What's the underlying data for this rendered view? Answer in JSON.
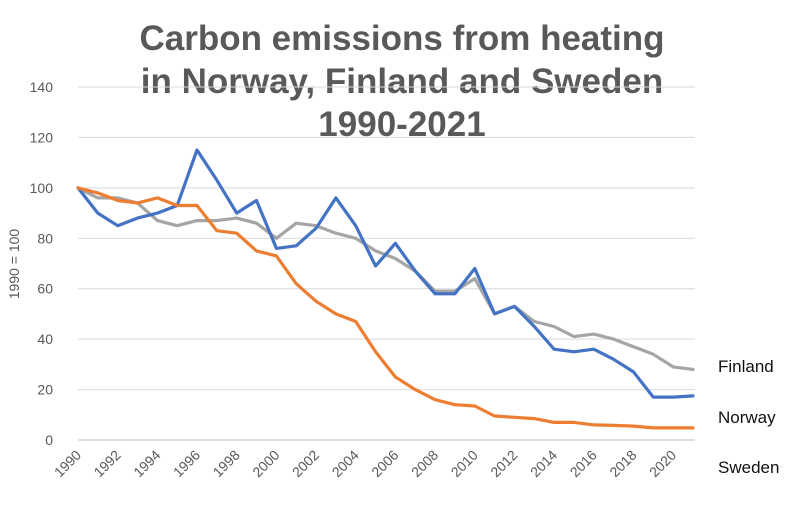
{
  "chart_data": {
    "type": "line",
    "title_lines": [
      "Carbon emissions from heating",
      "in Norway, Finland and Sweden",
      "1990-2021"
    ],
    "xlabel": "",
    "ylabel": "1990 = 100",
    "ylim": [
      0,
      140
    ],
    "yticks": [
      0,
      20,
      40,
      60,
      80,
      100,
      120,
      140
    ],
    "x": [
      1990,
      1991,
      1992,
      1993,
      1994,
      1995,
      1996,
      1997,
      1998,
      1999,
      2000,
      2001,
      2002,
      2003,
      2004,
      2005,
      2006,
      2007,
      2008,
      2009,
      2010,
      2011,
      2012,
      2013,
      2014,
      2015,
      2016,
      2017,
      2018,
      2019,
      2020,
      2021
    ],
    "xtick_labels": [
      "1990",
      "1992",
      "1994",
      "1996",
      "1998",
      "2000",
      "2002",
      "2004",
      "2006",
      "2008",
      "2010",
      "2012",
      "2014",
      "2016",
      "2018",
      "2020"
    ],
    "grid": true,
    "legend": "end-of-line labels at right",
    "series": [
      {
        "name": "Finland",
        "color": "#a5a5a5",
        "values": [
          100,
          96,
          96,
          94,
          87,
          85,
          87,
          87,
          88,
          86,
          80,
          86,
          85,
          82,
          80,
          75,
          72,
          67,
          59,
          59,
          64,
          50,
          53,
          47,
          45,
          41,
          42,
          40,
          37,
          34,
          29,
          28
        ]
      },
      {
        "name": "Norway",
        "color": "#4472c4",
        "values": [
          100,
          90,
          85,
          88,
          90,
          93,
          115,
          103,
          90,
          95,
          76,
          77,
          84,
          96,
          85,
          69,
          78,
          67,
          58,
          58,
          68,
          50,
          53,
          45,
          36,
          35,
          36,
          32,
          27,
          17,
          17,
          17.5
        ]
      },
      {
        "name": "Sweden",
        "color": "#ed7d31",
        "values": [
          100,
          98,
          95,
          94,
          96,
          93,
          93,
          83,
          82,
          75,
          73,
          62,
          55,
          50,
          47,
          35,
          25,
          20,
          16,
          14,
          13.5,
          9.5,
          9,
          8.5,
          7,
          7,
          6,
          5.8,
          5.5,
          4.8,
          4.8,
          4.8
        ]
      }
    ]
  }
}
